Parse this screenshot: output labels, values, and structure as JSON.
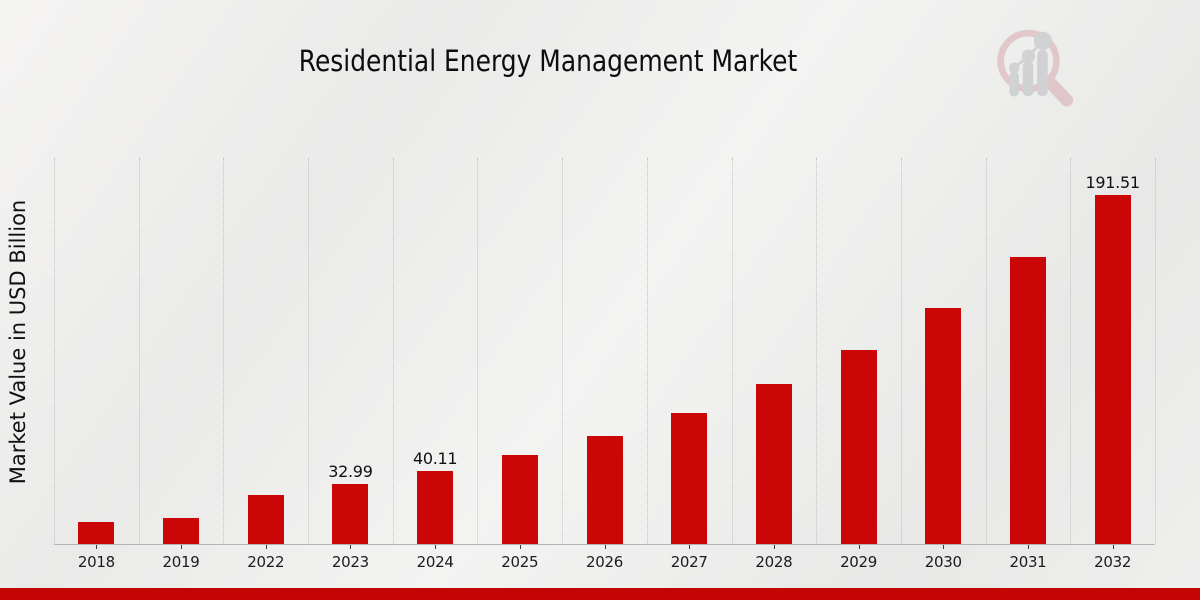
{
  "page": {
    "accent_red": "#c30505",
    "background": "#eeeeed"
  },
  "header": {
    "logo_icon": "magnifier-bar-chart-logo"
  },
  "chart_data": {
    "type": "bar",
    "title": "Residential Energy Management Market",
    "xlabel": "",
    "ylabel": "Market Value in USD Billion",
    "categories": [
      "2018",
      "2019",
      "2022",
      "2023",
      "2024",
      "2025",
      "2026",
      "2027",
      "2028",
      "2029",
      "2030",
      "2031",
      "2032"
    ],
    "values": [
      12.0,
      14.25,
      26.85,
      32.99,
      40.11,
      48.77,
      59.29,
      72.09,
      87.65,
      106.57,
      129.57,
      157.53,
      191.51
    ],
    "value_labels": {
      "2023": "32.99",
      "2024": "40.11",
      "2032": "191.51"
    },
    "bar_color": "#ca0606",
    "ylim": [
      0,
      212
    ],
    "grid": "vertical dotted gridlines between categories",
    "legend": "none"
  }
}
